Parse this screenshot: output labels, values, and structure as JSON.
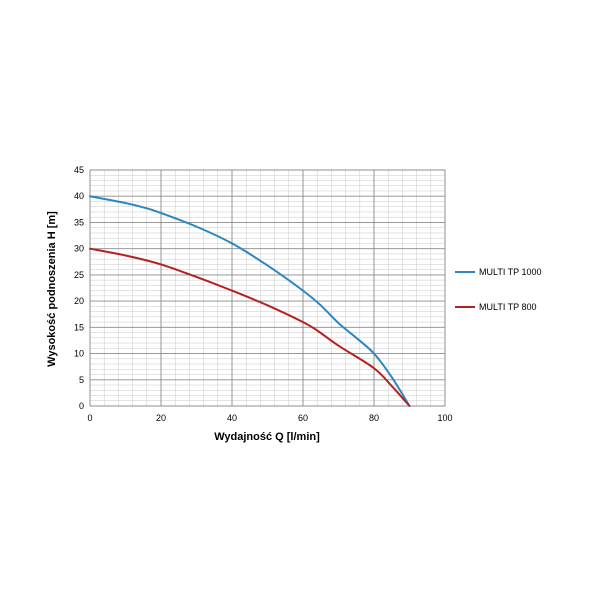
{
  "chart_data": {
    "type": "line",
    "xlabel": "Wydajność Q [l/min]",
    "ylabel": "Wysokość podnoszenia H [m]",
    "xlim": [
      0,
      100
    ],
    "ylim": [
      0,
      45
    ],
    "x_ticks": [
      0,
      20,
      40,
      60,
      80,
      100
    ],
    "y_ticks": [
      0,
      5,
      10,
      15,
      20,
      25,
      30,
      35,
      40,
      45
    ],
    "grid": true,
    "legend_position": "right",
    "series": [
      {
        "name": "MULTI TP 1000",
        "color": "#2e86c1",
        "x": [
          0,
          10,
          16,
          20,
          30,
          40,
          50,
          60,
          65,
          70,
          75,
          80,
          85,
          90
        ],
        "y": [
          40,
          38.7,
          37.7,
          36.8,
          34.2,
          31,
          26.8,
          22,
          19.2,
          15.8,
          13,
          10,
          5.5,
          0
        ]
      },
      {
        "name": "MULTI TP 800",
        "color": "#b22222",
        "x": [
          0,
          10,
          20,
          30,
          40,
          50,
          60,
          64,
          70,
          80,
          85,
          90
        ],
        "y": [
          30,
          28.7,
          27,
          24.6,
          22,
          19.2,
          16,
          14.4,
          11.5,
          7.2,
          3.8,
          0
        ]
      }
    ]
  }
}
